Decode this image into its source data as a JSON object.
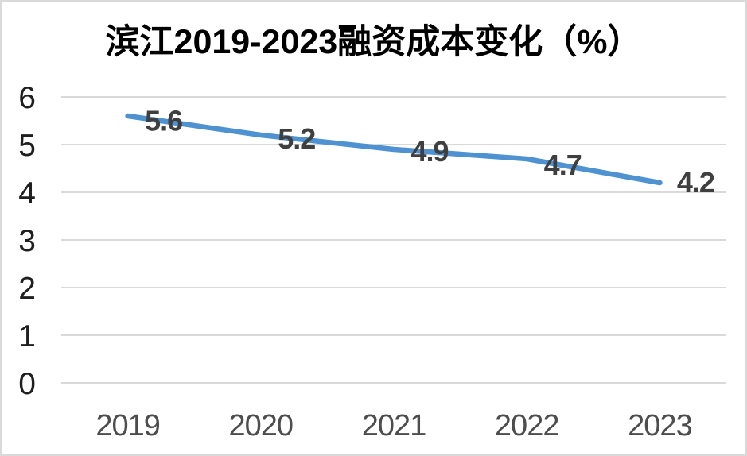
{
  "chart_data": {
    "type": "line",
    "title": "滨江2019-2023融资成本变化（%）",
    "categories": [
      "2019",
      "2020",
      "2021",
      "2022",
      "2023"
    ],
    "values": [
      5.6,
      5.2,
      4.9,
      4.7,
      4.2
    ],
    "data_labels": [
      "5.6",
      "5.2",
      "4.9",
      "4.7",
      "4.2"
    ],
    "y_ticks": [
      "0",
      "1",
      "2",
      "3",
      "4",
      "5",
      "6"
    ],
    "y_tick_values": [
      0,
      1,
      2,
      3,
      4,
      5,
      6
    ],
    "ylim": [
      0,
      6
    ],
    "xlabel": "",
    "ylabel": "",
    "legend": "none",
    "grid": "horizontal",
    "colors": {
      "line": "#4E92D2",
      "gridline": "#D9D9D9",
      "title_text": "#000000",
      "y_tick_text": "#1F1F1F",
      "x_tick_text": "#4D4D4D",
      "data_label_text": "#3F3F3F",
      "background": "#FFFFFF",
      "chart_border": "#D9D9D9"
    }
  }
}
